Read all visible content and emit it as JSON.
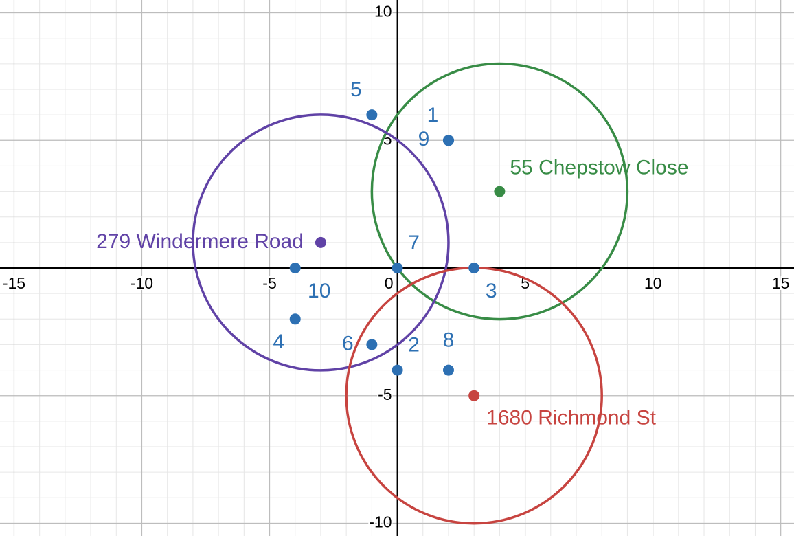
{
  "chart_data": {
    "type": "scatter",
    "xlim": [
      -15.55,
      15.52
    ],
    "ylim": [
      -10.5,
      10.5
    ],
    "xticks": [
      -15,
      -10,
      -5,
      0,
      5,
      10,
      15
    ],
    "yticks": [
      -10,
      -5,
      5,
      10
    ],
    "grid": true,
    "series": [
      {
        "color": "#2d70b3",
        "x": [
          2,
          0,
          3,
          -4,
          -1,
          -1,
          0,
          2,
          2,
          -4
        ],
        "values": [
          5,
          -4,
          0,
          -2,
          6,
          -3,
          0,
          -4,
          5,
          0
        ],
        "point_labels": [
          "1",
          "2",
          "3",
          "4",
          "5",
          "6",
          "7",
          "8",
          "9",
          "10"
        ]
      }
    ],
    "circles": [
      {
        "label": "55 Chepstow Close",
        "color": "#388c46",
        "center_x": 4,
        "center_y": 3,
        "radius": 5
      },
      {
        "label": "279 Windermere Road",
        "color": "#6042a6",
        "center_x": -3,
        "center_y": 1,
        "radius": 5
      },
      {
        "label": "1680 Richmond St",
        "color": "#c74440",
        "center_x": 3,
        "center_y": -5,
        "radius": 5
      }
    ]
  }
}
